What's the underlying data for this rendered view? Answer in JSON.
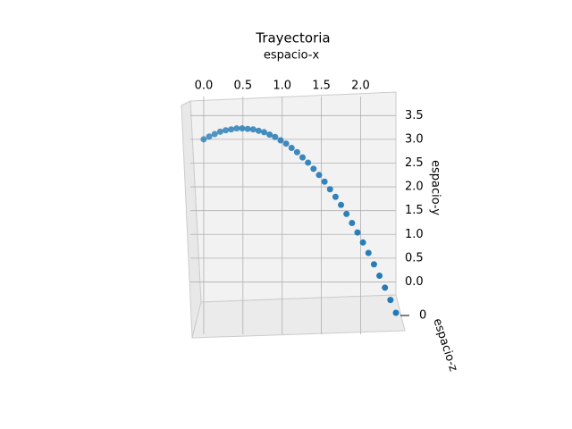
{
  "chart_data": {
    "type": "scatter3d",
    "title": "Trayectoria",
    "xlabel": "espacio-x",
    "ylabel": "espacio-y",
    "zlabel": "espacio-z",
    "color": "#1f77b4",
    "x": [
      0,
      0.07,
      0.14,
      0.21,
      0.28,
      0.35,
      0.42,
      0.49,
      0.56,
      0.63,
      0.7,
      0.77,
      0.84,
      0.91,
      0.98,
      1.05,
      1.12,
      1.19,
      1.26,
      1.33,
      1.4,
      1.47,
      1.54,
      1.61,
      1.68,
      1.75,
      1.82,
      1.89,
      1.96,
      2.03,
      2.1,
      2.17,
      2.24,
      2.31,
      2.38,
      2.45
    ],
    "y": [
      3.0,
      3.06,
      3.11,
      3.16,
      3.19,
      3.21,
      3.23,
      3.23,
      3.22,
      3.21,
      3.18,
      3.15,
      3.1,
      3.05,
      2.98,
      2.91,
      2.82,
      2.73,
      2.62,
      2.51,
      2.38,
      2.25,
      2.11,
      1.95,
      1.79,
      1.62,
      1.43,
      1.24,
      1.04,
      0.83,
      0.61,
      0.37,
      0.13,
      -0.12,
      -0.38,
      -0.65
    ],
    "z": [
      0,
      0,
      0,
      0,
      0,
      0,
      0,
      0,
      0,
      0,
      0,
      0,
      0,
      0,
      0,
      0,
      0,
      0,
      0,
      0,
      0,
      0,
      0,
      0,
      0,
      0,
      0,
      0,
      0,
      0,
      0,
      0,
      0,
      0,
      0,
      0
    ],
    "xlim": [
      -0.17,
      2.45
    ],
    "ylim": [
      -0.65,
      3.6
    ],
    "zlim": [
      -0.06,
      0.06
    ],
    "xticks": [
      {
        "value": 0,
        "label": "0.0"
      },
      {
        "value": 0.5,
        "label": "0.5"
      },
      {
        "value": 1,
        "label": "1.0"
      },
      {
        "value": 1.5,
        "label": "1.5"
      },
      {
        "value": 2,
        "label": "2.0"
      }
    ],
    "yticks": [
      {
        "value": 0,
        "label": "0.0"
      },
      {
        "value": 0.5,
        "label": "0.5"
      },
      {
        "value": 1,
        "label": "1.0"
      },
      {
        "value": 1.5,
        "label": "1.5"
      },
      {
        "value": 2,
        "label": "2.0"
      },
      {
        "value": 2.5,
        "label": "2.5"
      },
      {
        "value": 3,
        "label": "3.0"
      },
      {
        "value": 3.5,
        "label": "3.5"
      }
    ],
    "zticks": [
      0
    ],
    "grid": true
  }
}
